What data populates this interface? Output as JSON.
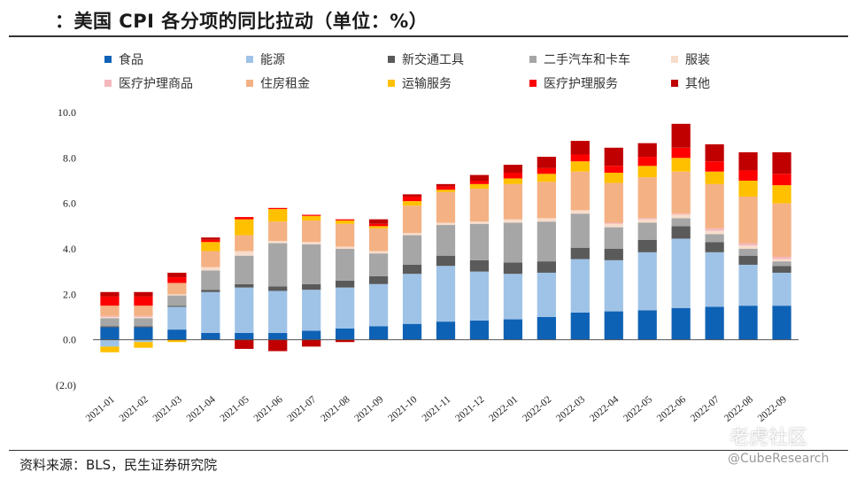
{
  "title": "：美国 CPI 各分项的同比拉动（单位：%）",
  "source": "资料来源：BLS，民生证券研究院",
  "watermark": "老虎社区",
  "watermark_handle": "@CubeResearch",
  "chart_data": {
    "type": "bar",
    "stacked": true,
    "ylim": [
      -2,
      10
    ],
    "yticks": [
      -2,
      0,
      2,
      4,
      6,
      8,
      10
    ],
    "ytick_labels": [
      "(2.0)",
      "0.0",
      "2.0",
      "4.0",
      "6.0",
      "8.0",
      "10.0"
    ],
    "categories": [
      "2021-01",
      "2021-02",
      "2021-03",
      "2021-04",
      "2021-05",
      "2021-06",
      "2021-07",
      "2021-08",
      "2021-09",
      "2021-10",
      "2021-11",
      "2021-12",
      "2022-01",
      "2022-02",
      "2022-03",
      "2022-04",
      "2022-05",
      "2022-06",
      "2022-07",
      "2022-08",
      "2022-09"
    ],
    "legend_position": "top",
    "series": [
      {
        "name": "食品",
        "color": "#0e62b5",
        "values": [
          0.55,
          0.55,
          0.45,
          0.3,
          0.3,
          0.3,
          0.4,
          0.5,
          0.6,
          0.7,
          0.8,
          0.85,
          0.9,
          1.0,
          1.2,
          1.25,
          1.3,
          1.4,
          1.45,
          1.5,
          1.5
        ]
      },
      {
        "name": "能源",
        "color": "#9fc3e7",
        "values": [
          -0.3,
          -0.1,
          1.0,
          1.8,
          2.0,
          1.85,
          1.8,
          1.8,
          1.85,
          2.2,
          2.45,
          2.15,
          2.0,
          1.95,
          2.35,
          2.25,
          2.55,
          3.05,
          2.4,
          1.8,
          1.45
        ]
      },
      {
        "name": "新交通工具",
        "color": "#5a5a5a",
        "values": [
          0.05,
          0.05,
          0.05,
          0.1,
          0.15,
          0.2,
          0.25,
          0.3,
          0.35,
          0.4,
          0.45,
          0.5,
          0.5,
          0.5,
          0.5,
          0.5,
          0.55,
          0.55,
          0.45,
          0.4,
          0.3
        ]
      },
      {
        "name": "二手汽车和卡车",
        "color": "#a6a6a6",
        "values": [
          0.35,
          0.35,
          0.45,
          0.85,
          1.25,
          1.9,
          1.75,
          1.4,
          1.0,
          1.3,
          1.35,
          1.6,
          1.75,
          1.75,
          1.5,
          0.95,
          0.75,
          0.35,
          0.35,
          0.3,
          0.2
        ]
      },
      {
        "name": "服装",
        "color": "#f8dccb",
        "values": [
          0.05,
          0.05,
          0.05,
          0.15,
          0.2,
          0.1,
          0.1,
          0.1,
          0.1,
          0.1,
          0.1,
          0.1,
          0.15,
          0.15,
          0.15,
          0.15,
          0.15,
          0.15,
          0.15,
          0.15,
          0.1
        ]
      },
      {
        "name": "医疗护理商品",
        "color": "#f4b7bd",
        "values": [
          0.05,
          0.05,
          0.0,
          0.0,
          0.0,
          0.0,
          0.0,
          0.0,
          0.0,
          0.0,
          0.0,
          0.0,
          0.0,
          0.0,
          0.0,
          0.05,
          0.05,
          0.05,
          0.1,
          0.1,
          0.1
        ]
      },
      {
        "name": "住房租金",
        "color": "#f4b183",
        "values": [
          0.45,
          0.45,
          0.5,
          0.7,
          0.7,
          0.85,
          0.95,
          1.0,
          1.0,
          1.2,
          1.35,
          1.45,
          1.55,
          1.6,
          1.7,
          1.75,
          1.8,
          1.85,
          1.95,
          2.05,
          2.35
        ]
      },
      {
        "name": "运输服务",
        "color": "#ffc000",
        "values": [
          -0.25,
          -0.25,
          -0.1,
          0.4,
          0.7,
          0.55,
          0.2,
          0.15,
          0.1,
          0.2,
          0.1,
          0.2,
          0.25,
          0.35,
          0.45,
          0.45,
          0.5,
          0.6,
          0.55,
          0.7,
          0.8
        ]
      },
      {
        "name": "医疗护理服务",
        "color": "#ff0000",
        "values": [
          0.4,
          0.4,
          0.25,
          0.1,
          0.1,
          0.05,
          0.05,
          0.05,
          0.1,
          0.2,
          0.15,
          0.15,
          0.25,
          0.25,
          0.3,
          0.3,
          0.4,
          0.45,
          0.45,
          0.45,
          0.5
        ]
      },
      {
        "name": "其他",
        "color": "#c00000",
        "values": [
          0.2,
          0.2,
          0.2,
          0.1,
          -0.4,
          -0.5,
          -0.3,
          -0.1,
          0.2,
          0.1,
          0.1,
          0.25,
          0.35,
          0.5,
          0.6,
          0.8,
          0.6,
          1.05,
          0.75,
          0.8,
          0.95
        ]
      }
    ]
  }
}
